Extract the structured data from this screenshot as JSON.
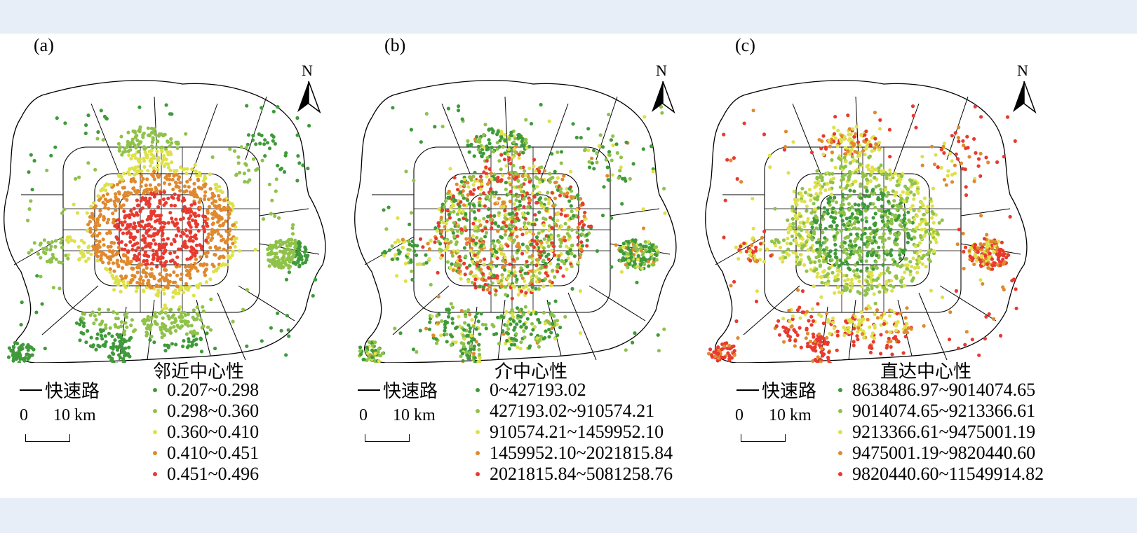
{
  "colors": {
    "class1": "#3f9a3a",
    "class2": "#8fc24a",
    "class3": "#dde14a",
    "class4": "#e0892e",
    "class5": "#e83a2f"
  },
  "common": {
    "road_label": "快速路",
    "scale_zero": "0",
    "scale_ten": "10 km",
    "north": "N"
  },
  "panels": [
    {
      "label": "(a)",
      "legend_title": "邻近中心性",
      "classes": [
        "0.207~0.298",
        "0.298~0.360",
        "0.360~0.410",
        "0.410~0.451",
        "0.451~0.496"
      ],
      "pattern": "closeness"
    },
    {
      "label": "(b)",
      "legend_title": "介中心性",
      "classes": [
        "0~427193.02",
        "427193.02~910574.21",
        "910574.21~1459952.10",
        "1459952.10~2021815.84",
        "2021815.84~5081258.76"
      ],
      "pattern": "betweenness"
    },
    {
      "label": "(c)",
      "legend_title": "直达中心性",
      "classes": [
        "8638486.97~9014074.65",
        "9014074.65~9213366.61",
        "9213366.61~9475001.19",
        "9475001.19~9820440.60",
        "9820440.60~11549914.82"
      ],
      "pattern": "straightness"
    }
  ]
}
